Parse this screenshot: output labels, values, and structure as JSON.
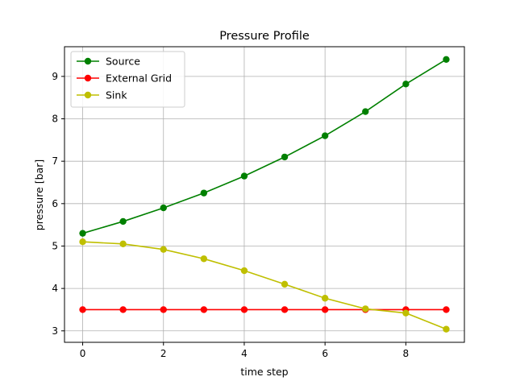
{
  "chart_data": {
    "type": "line",
    "title": "Pressure Profile",
    "xlabel": "time step",
    "ylabel": "pressure [bar]",
    "xlim": [
      -0.45,
      9.45
    ],
    "ylim": [
      2.73,
      9.7
    ],
    "xticks": [
      0,
      2,
      4,
      6,
      8
    ],
    "yticks": [
      3,
      4,
      5,
      6,
      7,
      8,
      9
    ],
    "grid": true,
    "legend_position": "top-left",
    "x": [
      0,
      1,
      2,
      3,
      4,
      5,
      6,
      7,
      8,
      9
    ],
    "series": [
      {
        "name": "Source",
        "color": "#008000",
        "values": [
          5.3,
          5.58,
          5.9,
          6.25,
          6.65,
          7.1,
          7.6,
          8.17,
          8.82,
          9.4
        ]
      },
      {
        "name": "External Grid",
        "color": "#ff0000",
        "values": [
          3.5,
          3.5,
          3.5,
          3.5,
          3.5,
          3.5,
          3.5,
          3.5,
          3.5,
          3.5
        ]
      },
      {
        "name": "Sink",
        "color": "#bfbf00",
        "values": [
          5.1,
          5.05,
          4.92,
          4.7,
          4.42,
          4.1,
          3.77,
          3.52,
          3.42,
          3.04
        ]
      }
    ]
  }
}
